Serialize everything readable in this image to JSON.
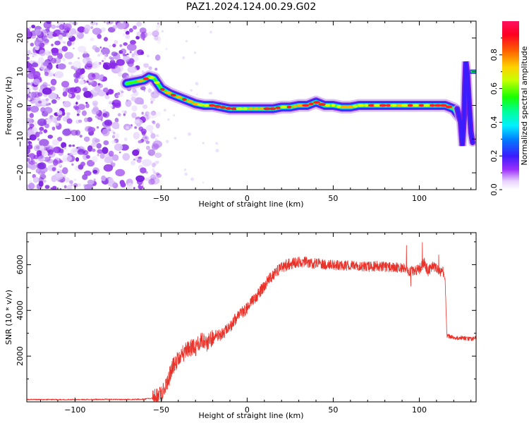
{
  "title": "PAZ1.2024.124.00.29.G02",
  "colors": {
    "snr_line": "#e8322a",
    "frame": "#000000",
    "noise": "#8a2be2"
  },
  "chart_data": [
    {
      "type": "heatmap",
      "xlabel": "Height of straight line (km)",
      "ylabel": "Frequency (Hz)",
      "xlim": [
        -128,
        133
      ],
      "ylim": [
        -25,
        25
      ],
      "xticks": [
        -100,
        -50,
        0,
        50,
        100
      ],
      "yticks": [
        -20,
        -10,
        0,
        10,
        20
      ],
      "colorbar": {
        "label": "Normalized spectral amplitude",
        "ticks": [
          0.0,
          0.2,
          0.4,
          0.6,
          0.8
        ],
        "range": [
          0,
          1
        ]
      },
      "ridge": [
        [
          -70,
          6.5
        ],
        [
          -65,
          7.0
        ],
        [
          -60,
          7.5
        ],
        [
          -57,
          8.5
        ],
        [
          -54,
          8.0
        ],
        [
          -50,
          5.0
        ],
        [
          -45,
          3.5
        ],
        [
          -40,
          2.5
        ],
        [
          -35,
          1.5
        ],
        [
          -30,
          0.5
        ],
        [
          -25,
          0.0
        ],
        [
          -20,
          0.0
        ],
        [
          -15,
          -0.5
        ],
        [
          -10,
          -1.0
        ],
        [
          -5,
          -1.0
        ],
        [
          0,
          -1.0
        ],
        [
          5,
          -1.0
        ],
        [
          10,
          -1.0
        ],
        [
          15,
          -1.0
        ],
        [
          20,
          -0.5
        ],
        [
          25,
          -0.5
        ],
        [
          30,
          0.0
        ],
        [
          35,
          0.0
        ],
        [
          40,
          1.0
        ],
        [
          45,
          0.0
        ],
        [
          50,
          0.0
        ],
        [
          55,
          -0.5
        ],
        [
          60,
          -0.5
        ],
        [
          65,
          0.0
        ],
        [
          70,
          0.0
        ],
        [
          75,
          0.0
        ],
        [
          80,
          0.0
        ],
        [
          85,
          0.0
        ],
        [
          90,
          0.0
        ],
        [
          95,
          0.0
        ],
        [
          100,
          0.0
        ],
        [
          105,
          0.0
        ],
        [
          110,
          0.0
        ],
        [
          115,
          0.0
        ],
        [
          120,
          -1.0
        ],
        [
          123,
          -3.0
        ]
      ]
    },
    {
      "type": "line",
      "xlabel": "Height of straight line (km)",
      "ylabel": "SNR (10 * v/v)",
      "xlim": [
        -128,
        133
      ],
      "ylim": [
        0,
        7400
      ],
      "xticks": [
        -100,
        -50,
        0,
        50,
        100
      ],
      "yticks": [
        2000,
        4000,
        6000
      ],
      "series": [
        {
          "x": [
            -128,
            -100,
            -80,
            -70,
            -60,
            -55,
            -52,
            -50,
            -48,
            -46,
            -44,
            -42,
            -40,
            -38,
            -36,
            -34,
            -32,
            -30,
            -28,
            -26,
            -24,
            -22,
            -20,
            -18,
            -16,
            -14,
            -12,
            -10,
            -8,
            -6,
            -4,
            -2,
            0,
            2,
            4,
            6,
            8,
            10,
            12,
            14,
            16,
            18,
            20,
            22,
            24,
            26,
            28,
            30,
            32,
            34,
            36,
            38,
            40,
            45,
            50,
            55,
            60,
            65,
            70,
            75,
            80,
            85,
            90,
            95,
            100,
            103,
            105,
            108,
            110,
            112,
            114,
            115,
            116,
            118,
            120,
            125,
            130,
            133
          ],
          "y": [
            100,
            100,
            110,
            100,
            120,
            160,
            250,
            380,
            500,
            850,
            1450,
            1700,
            1850,
            2050,
            2200,
            2300,
            2400,
            2350,
            2600,
            2700,
            2500,
            2650,
            2800,
            2900,
            2900,
            3000,
            3150,
            3250,
            3550,
            3650,
            3900,
            3950,
            4100,
            4300,
            4500,
            4650,
            4900,
            5050,
            5300,
            5450,
            5650,
            5750,
            5850,
            5950,
            6000,
            6050,
            6050,
            6100,
            6050,
            6100,
            6050,
            6050,
            6050,
            6000,
            6000,
            5950,
            5950,
            5950,
            5900,
            5950,
            5900,
            5900,
            5850,
            5700,
            5800,
            6100,
            5700,
            6000,
            5800,
            5700,
            5700,
            5350,
            2900,
            2850,
            2800,
            2800,
            2750,
            2800
          ]
        }
      ]
    }
  ]
}
